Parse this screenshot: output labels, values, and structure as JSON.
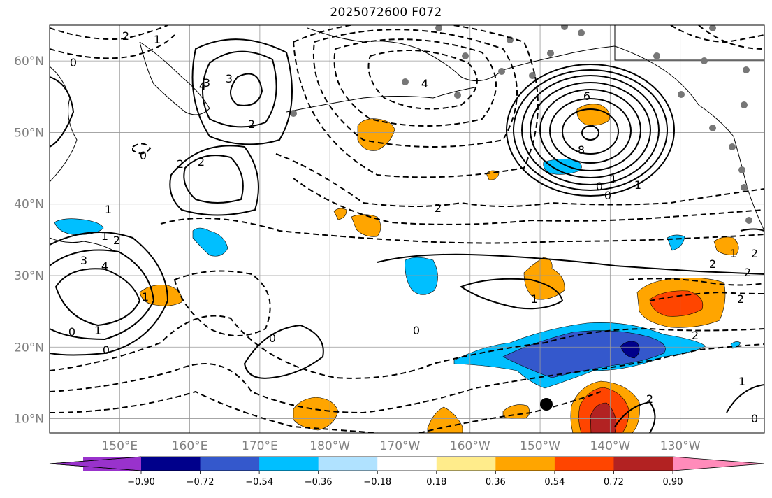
{
  "title": "2025072600 F072",
  "map": {
    "lat_ticks": [
      {
        "lat": 60,
        "label": "60°N"
      },
      {
        "lat": 50,
        "label": "50°N"
      },
      {
        "lat": 40,
        "label": "40°N"
      },
      {
        "lat": 30,
        "label": "30°N"
      },
      {
        "lat": 20,
        "label": "20°N"
      },
      {
        "lat": 10,
        "label": "10°N"
      }
    ],
    "lon_ticks": [
      {
        "lon": 150,
        "label": "150°E"
      },
      {
        "lon": 160,
        "label": "160°E"
      },
      {
        "lon": 170,
        "label": "170°E"
      },
      {
        "lon": 180,
        "label": "180°W"
      },
      {
        "lon": 190,
        "label": "170°W"
      },
      {
        "lon": 200,
        "label": "160°W"
      },
      {
        "lon": 210,
        "label": "150°W"
      },
      {
        "lon": 220,
        "label": "140°W"
      },
      {
        "lon": 230,
        "label": "130°W"
      }
    ],
    "extent": {
      "lon_min": 140,
      "lon_max": 242,
      "lat_min": 8,
      "lat_max": 65
    },
    "contour_labels": [
      "2",
      "1",
      "0",
      "3",
      "3",
      "4",
      "2",
      "2",
      "0",
      "2",
      "1",
      "2",
      "4",
      "6",
      "8",
      "0",
      "1",
      "1",
      "0",
      "2",
      "1",
      "3",
      "4",
      "1",
      "2",
      "2",
      "2",
      "0",
      "0",
      "1",
      "2",
      "2",
      "1",
      "0",
      "0",
      "1",
      "2",
      "0",
      "1"
    ]
  },
  "colorbar": {
    "colors": [
      "#9932cc",
      "#00008b",
      "#3458cc",
      "#00bfff",
      "#b0e2ff",
      "#ffffff",
      "#ffec8b",
      "#ffa500",
      "#ff4500",
      "#b22222",
      "#ff8bba"
    ],
    "tick_labels": [
      "−0.90",
      "−0.72",
      "−0.54",
      "−0.36",
      "−0.18",
      "0.18",
      "0.36",
      "0.54",
      "0.72",
      "0.90"
    ]
  }
}
